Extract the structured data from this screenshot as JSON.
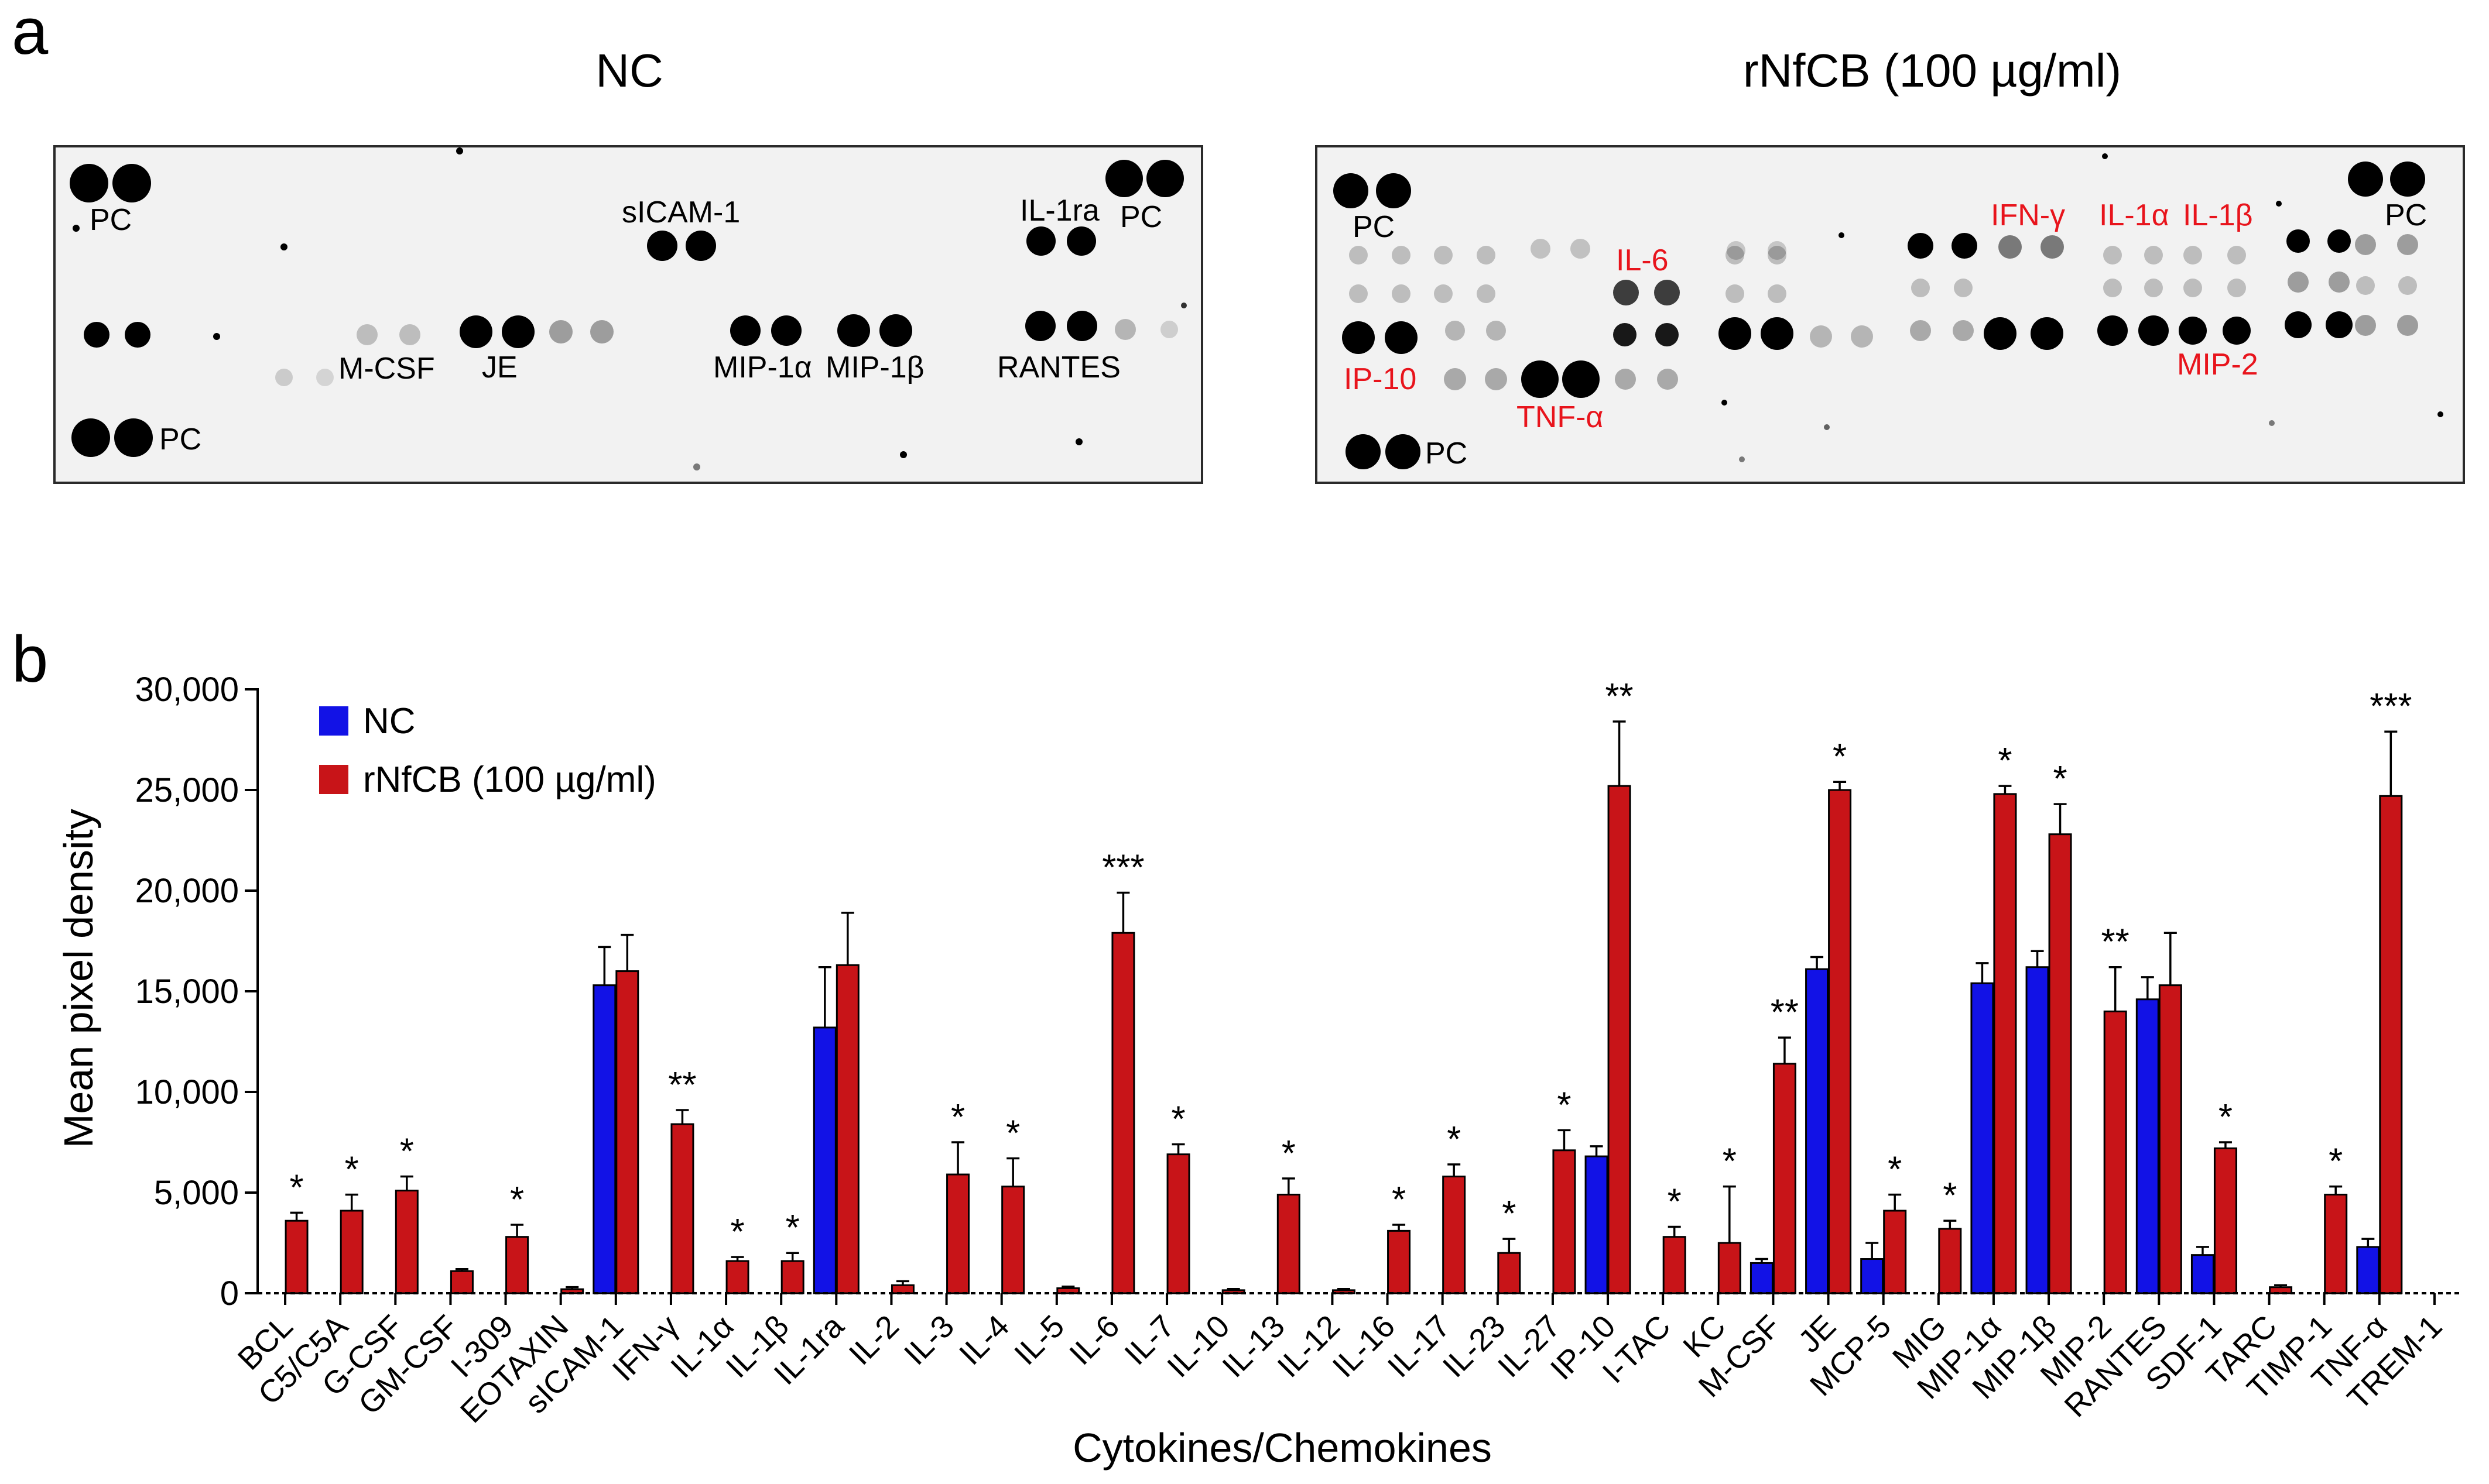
{
  "panel_a": {
    "label": "a",
    "nc": {
      "title": "NC",
      "pc_labels": [
        "PC",
        "PC",
        "PC"
      ],
      "labels": [
        "sICAM-1",
        "IL-1ra",
        "M-CSF",
        "JE",
        "MIP-1α",
        "MIP-1β",
        "RANTES"
      ]
    },
    "treated": {
      "title": "rNfCB (100 µg/ml)",
      "pc_labels": [
        "PC",
        "PC",
        "PC"
      ],
      "labels": [
        "IL-6",
        "IFN-γ",
        "IL-1α",
        "IL-1β",
        "IP-10",
        "TNF-α",
        "MIP-2"
      ]
    }
  },
  "colors": {
    "nc": "#1212e6",
    "treated": "#c81418",
    "highlight_label": "#e8141c",
    "spot": "#000000"
  },
  "chart_data": {
    "type": "bar",
    "panel_label": "b",
    "title": "",
    "xlabel": "Cytokines/Chemokines",
    "ylabel": "Mean pixel density",
    "ylim": [
      0,
      30000
    ],
    "yticks": [
      0,
      5000,
      10000,
      15000,
      20000,
      25000,
      30000
    ],
    "ytick_labels": [
      "0",
      "5,000",
      "10,000",
      "15,000",
      "20,000",
      "25,000",
      "30,000"
    ],
    "grid": false,
    "legend_position": "top-left",
    "categories": [
      "BCL",
      "C5/C5A",
      "G-CSF",
      "GM-CSF",
      "I-309",
      "EOTAXIN",
      "sICAM-1",
      "IFN-γ",
      "IL-1α",
      "IL-1β",
      "IL-1ra",
      "IL-2",
      "IL-3",
      "IL-4",
      "IL-5",
      "IL-6",
      "IL-7",
      "IL-10",
      "IL-13",
      "IL-12",
      "IL-16",
      "IL-17",
      "IL-23",
      "IL-27",
      "IP-10",
      "I-TAC",
      "KC",
      "M-CSF",
      "JE",
      "MCP-5",
      "MIG",
      "MIP-1α",
      "MIP-1β",
      "MIP-2",
      "RANTES",
      "SDF-1",
      "TARC",
      "TIMP-1",
      "TNF-α",
      "TREM-1"
    ],
    "series": [
      {
        "name": "NC",
        "values": [
          0,
          0,
          0,
          0,
          0,
          0,
          15300,
          0,
          0,
          0,
          13200,
          0,
          0,
          0,
          0,
          0,
          0,
          0,
          0,
          0,
          0,
          0,
          0,
          0,
          6800,
          0,
          0,
          1500,
          16100,
          1700,
          0,
          15400,
          16200,
          0,
          14600,
          1900,
          0,
          0,
          2300,
          0
        ],
        "errors": [
          0,
          0,
          0,
          0,
          0,
          0,
          1900,
          0,
          0,
          0,
          3000,
          0,
          0,
          0,
          0,
          0,
          0,
          0,
          0,
          0,
          0,
          0,
          0,
          0,
          500,
          0,
          0,
          200,
          600,
          800,
          0,
          1000,
          800,
          0,
          1100,
          400,
          0,
          0,
          400,
          0
        ]
      },
      {
        "name": "rNfCB (100 µg/ml)",
        "values": [
          3600,
          4100,
          5100,
          1100,
          2800,
          200,
          16000,
          8400,
          1600,
          1600,
          16300,
          400,
          5900,
          5300,
          250,
          17900,
          6900,
          150,
          4900,
          150,
          3100,
          5800,
          2000,
          7100,
          25200,
          2800,
          2500,
          11400,
          25000,
          4100,
          3200,
          24800,
          22800,
          14000,
          15300,
          7200,
          300,
          4900,
          24700,
          0
        ],
        "errors": [
          400,
          800,
          700,
          100,
          600,
          100,
          1800,
          700,
          200,
          400,
          2600,
          200,
          1600,
          1400,
          80,
          2000,
          500,
          60,
          800,
          60,
          300,
          600,
          700,
          1000,
          3200,
          500,
          2800,
          1300,
          400,
          800,
          400,
          400,
          1500,
          2200,
          2600,
          300,
          100,
          400,
          3200,
          0
        ]
      }
    ],
    "significance": [
      "*",
      "*",
      "*",
      "",
      "*",
      "",
      "",
      "**",
      "*",
      "*",
      "",
      "",
      "*",
      "*",
      "",
      "***",
      "*",
      "",
      "*",
      "",
      "*",
      "*",
      "*",
      "*",
      "**",
      "*",
      "*",
      "**",
      "*",
      "*",
      "*",
      "*",
      "*",
      "**",
      "",
      "*",
      "",
      "*",
      "***",
      ""
    ]
  }
}
